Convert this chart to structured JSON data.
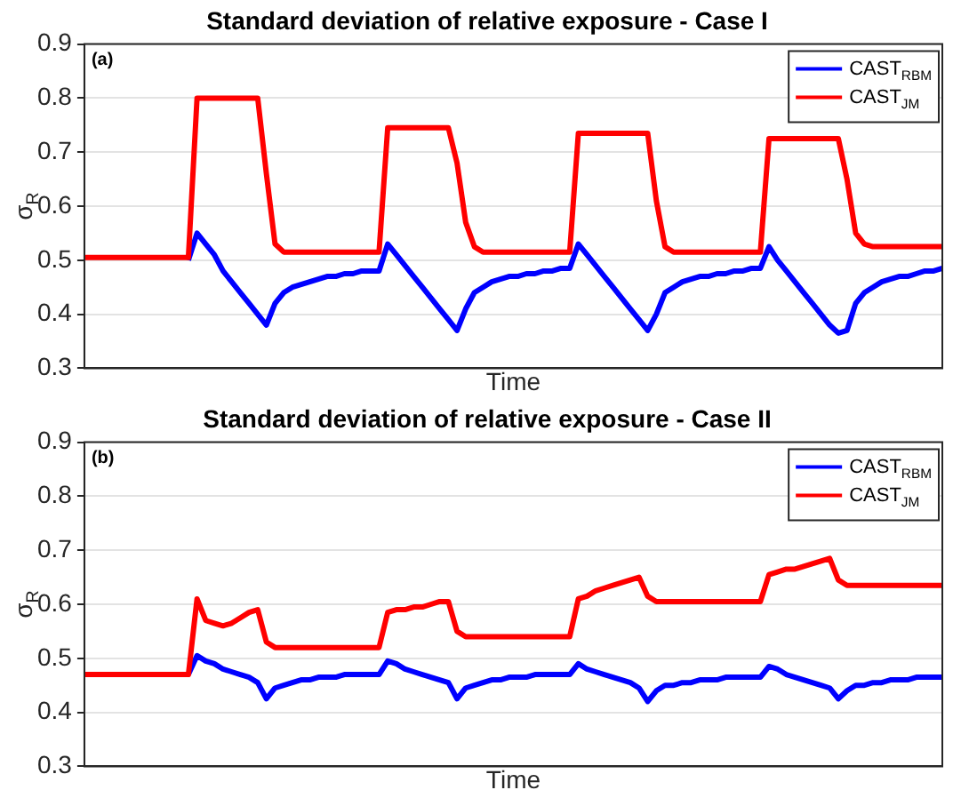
{
  "chart_data": [
    {
      "type": "line",
      "title": "Standard deviation of relative exposure - Case I",
      "xlabel": "Time",
      "ylabel": "σ$_{R}$",
      "annotations": [
        "(a)"
      ],
      "categories": [
        null,
        null,
        null,
        null,
        null,
        null,
        null,
        null,
        null,
        null,
        null,
        null,
        null,
        null,
        null,
        null,
        null,
        null,
        null,
        null,
        null,
        null,
        null,
        null,
        null,
        null,
        null,
        null,
        null,
        null,
        null,
        null,
        null,
        null,
        null,
        null,
        null,
        null,
        null,
        null,
        null,
        null,
        null,
        null,
        null,
        null,
        null,
        null,
        null,
        null,
        null,
        null,
        null,
        null,
        null,
        null,
        null,
        null,
        null,
        null,
        null,
        null,
        null,
        null,
        null,
        null,
        null,
        null,
        null,
        null,
        null,
        null,
        null,
        null,
        null,
        null,
        null,
        null,
        null,
        null,
        null,
        null,
        null,
        null,
        null,
        null,
        null,
        null,
        null,
        null,
        null,
        null,
        null,
        null,
        null,
        null,
        null,
        null,
        null,
        null
      ],
      "ylim": [
        0.3,
        0.9
      ],
      "yticks": [
        0.3,
        0.4,
        0.5,
        0.6,
        0.7,
        0.8,
        0.9
      ],
      "tick_labels": "y",
      "grid": "y",
      "legend": "top right",
      "marker": "none",
      "line_style": "solid",
      "series": [
        {
          "name": "CAST$_{RBM}$",
          "color": "#0000ff",
          "values": [
            null,
            null,
            null,
            null,
            null,
            null,
            null,
            null,
            null,
            null,
            null,
            null,
            0.5,
            0.55,
            0.53,
            0.51,
            0.48,
            0.46,
            0.44,
            0.42,
            0.4,
            0.38,
            0.42,
            0.44,
            0.45,
            0.455,
            0.46,
            0.465,
            0.47,
            0.47,
            0.475,
            0.475,
            0.48,
            0.48,
            0.48,
            0.53,
            0.51,
            0.49,
            0.47,
            0.45,
            0.43,
            0.41,
            0.39,
            0.37,
            0.41,
            0.44,
            0.45,
            0.46,
            0.465,
            0.47,
            0.47,
            0.475,
            0.475,
            0.48,
            0.48,
            0.485,
            0.485,
            0.53,
            0.51,
            0.49,
            0.47,
            0.45,
            0.43,
            0.41,
            0.39,
            0.37,
            0.4,
            0.44,
            0.45,
            0.46,
            0.465,
            0.47,
            0.47,
            0.475,
            0.475,
            0.48,
            0.48,
            0.485,
            0.485,
            0.525,
            0.5,
            0.48,
            0.46,
            0.44,
            0.42,
            0.4,
            0.38,
            0.365,
            0.37,
            0.42,
            0.44,
            0.45,
            0.46,
            0.465,
            0.47,
            0.47,
            0.475,
            0.48,
            0.48,
            0.485
          ]
        },
        {
          "name": "CAST$_{JM}$",
          "color": "#ff0000",
          "values": [
            0.505,
            0.505,
            0.505,
            0.505,
            0.505,
            0.505,
            0.505,
            0.505,
            0.505,
            0.505,
            0.505,
            0.505,
            0.505,
            0.8,
            0.8,
            0.8,
            0.8,
            0.8,
            0.8,
            0.8,
            0.8,
            0.66,
            0.53,
            0.515,
            0.515,
            0.515,
            0.515,
            0.515,
            0.515,
            0.515,
            0.515,
            0.515,
            0.515,
            0.515,
            0.515,
            0.745,
            0.745,
            0.745,
            0.745,
            0.745,
            0.745,
            0.745,
            0.745,
            0.68,
            0.57,
            0.525,
            0.515,
            0.515,
            0.515,
            0.515,
            0.515,
            0.515,
            0.515,
            0.515,
            0.515,
            0.515,
            0.515,
            0.735,
            0.735,
            0.735,
            0.735,
            0.735,
            0.735,
            0.735,
            0.735,
            0.735,
            0.61,
            0.525,
            0.515,
            0.515,
            0.515,
            0.515,
            0.515,
            0.515,
            0.515,
            0.515,
            0.515,
            0.515,
            0.515,
            0.725,
            0.725,
            0.725,
            0.725,
            0.725,
            0.725,
            0.725,
            0.725,
            0.725,
            0.65,
            0.55,
            0.53,
            0.525,
            0.525,
            0.525,
            0.525,
            0.525,
            0.525,
            0.525,
            0.525,
            0.525
          ]
        }
      ]
    },
    {
      "type": "line",
      "title": "Standard deviation of relative exposure - Case II",
      "xlabel": "Time",
      "ylabel": "σ$_{R}$",
      "annotations": [
        "(b)"
      ],
      "categories": [
        null,
        null,
        null,
        null,
        null,
        null,
        null,
        null,
        null,
        null,
        null,
        null,
        null,
        null,
        null,
        null,
        null,
        null,
        null,
        null,
        null,
        null,
        null,
        null,
        null,
        null,
        null,
        null,
        null,
        null,
        null,
        null,
        null,
        null,
        null,
        null,
        null,
        null,
        null,
        null,
        null,
        null,
        null,
        null,
        null,
        null,
        null,
        null,
        null,
        null,
        null,
        null,
        null,
        null,
        null,
        null,
        null,
        null,
        null,
        null,
        null,
        null,
        null,
        null,
        null,
        null,
        null,
        null,
        null,
        null,
        null,
        null,
        null,
        null,
        null,
        null,
        null,
        null,
        null,
        null,
        null,
        null,
        null,
        null,
        null,
        null,
        null,
        null,
        null,
        null,
        null,
        null,
        null,
        null,
        null,
        null,
        null,
        null,
        null,
        null
      ],
      "ylim": [
        0.3,
        0.9
      ],
      "yticks": [
        0.3,
        0.4,
        0.5,
        0.6,
        0.7,
        0.8,
        0.9
      ],
      "tick_labels": "y",
      "grid": "y",
      "legend": "top right",
      "marker": "none",
      "line_style": "solid",
      "series": [
        {
          "name": "CAST$_{RBM}$",
          "color": "#0000ff",
          "values": [
            null,
            null,
            null,
            null,
            null,
            null,
            null,
            null,
            null,
            null,
            null,
            null,
            0.47,
            0.505,
            0.495,
            0.49,
            0.48,
            0.475,
            0.47,
            0.465,
            0.455,
            0.425,
            0.445,
            0.45,
            0.455,
            0.46,
            0.46,
            0.465,
            0.465,
            0.465,
            0.47,
            0.47,
            0.47,
            0.47,
            0.47,
            0.495,
            0.49,
            0.48,
            0.475,
            0.47,
            0.465,
            0.46,
            0.455,
            0.425,
            0.445,
            0.45,
            0.455,
            0.46,
            0.46,
            0.465,
            0.465,
            0.465,
            0.47,
            0.47,
            0.47,
            0.47,
            0.47,
            0.49,
            0.48,
            0.475,
            0.47,
            0.465,
            0.46,
            0.455,
            0.445,
            0.42,
            0.44,
            0.45,
            0.45,
            0.455,
            0.455,
            0.46,
            0.46,
            0.46,
            0.465,
            0.465,
            0.465,
            0.465,
            0.465,
            0.485,
            0.48,
            0.47,
            0.465,
            0.46,
            0.455,
            0.45,
            0.445,
            0.425,
            0.44,
            0.45,
            0.45,
            0.455,
            0.455,
            0.46,
            0.46,
            0.46,
            0.465,
            0.465,
            0.465,
            0.465
          ]
        },
        {
          "name": "CAST$_{JM}$",
          "color": "#ff0000",
          "values": [
            0.47,
            0.47,
            0.47,
            0.47,
            0.47,
            0.47,
            0.47,
            0.47,
            0.47,
            0.47,
            0.47,
            0.47,
            0.47,
            0.61,
            0.57,
            0.565,
            0.56,
            0.565,
            0.575,
            0.585,
            0.59,
            0.53,
            0.52,
            0.52,
            0.52,
            0.52,
            0.52,
            0.52,
            0.52,
            0.52,
            0.52,
            0.52,
            0.52,
            0.52,
            0.52,
            0.585,
            0.59,
            0.59,
            0.595,
            0.595,
            0.6,
            0.605,
            0.605,
            0.55,
            0.54,
            0.54,
            0.54,
            0.54,
            0.54,
            0.54,
            0.54,
            0.54,
            0.54,
            0.54,
            0.54,
            0.54,
            0.54,
            0.61,
            0.615,
            0.625,
            0.63,
            0.635,
            0.64,
            0.645,
            0.65,
            0.615,
            0.605,
            0.605,
            0.605,
            0.605,
            0.605,
            0.605,
            0.605,
            0.605,
            0.605,
            0.605,
            0.605,
            0.605,
            0.605,
            0.655,
            0.66,
            0.665,
            0.665,
            0.67,
            0.675,
            0.68,
            0.685,
            0.645,
            0.635,
            0.635,
            0.635,
            0.635,
            0.635,
            0.635,
            0.635,
            0.635,
            0.635,
            0.635,
            0.635,
            0.635
          ]
        }
      ]
    }
  ]
}
